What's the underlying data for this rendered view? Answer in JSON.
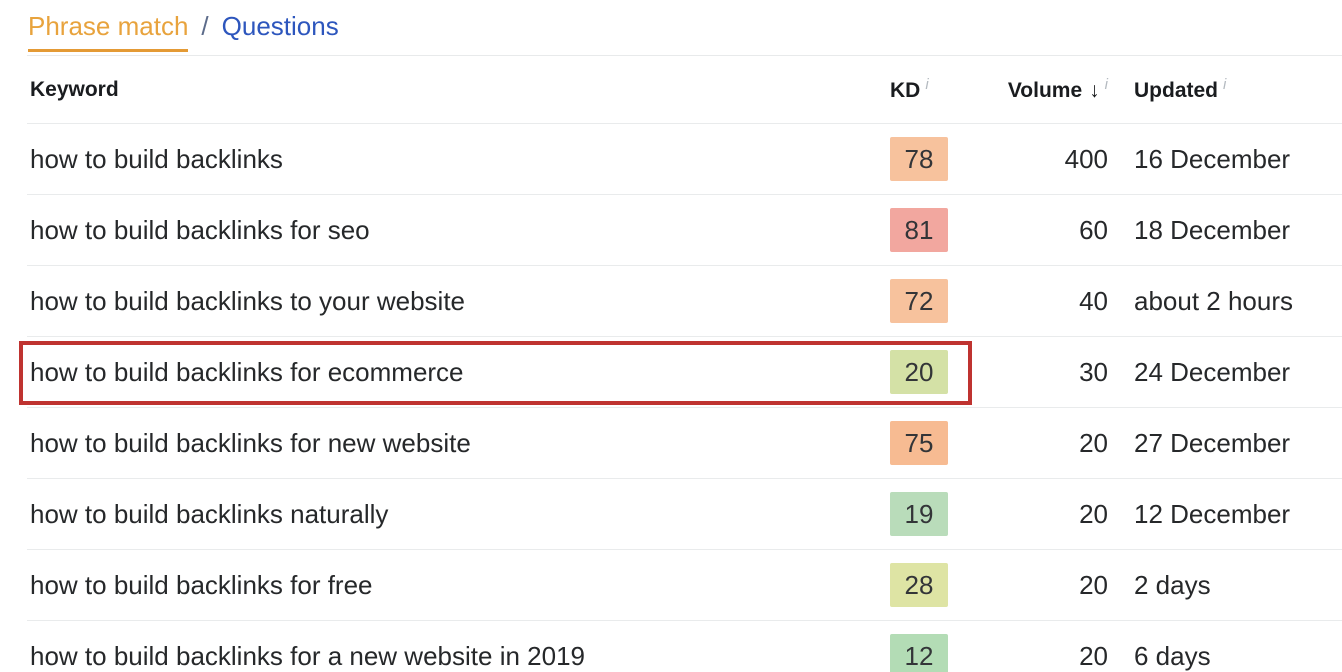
{
  "tabs": {
    "phrase_match": "Phrase match",
    "separator": "/",
    "questions": "Questions"
  },
  "table": {
    "headers": {
      "keyword": "Keyword",
      "kd": "KD",
      "volume": "Volume",
      "updated": "Updated",
      "sort_arrow": "↓",
      "info_icon": "i"
    },
    "rows": [
      {
        "keyword": "how to build backlinks",
        "kd": "78",
        "kd_color": "#f7c29d",
        "volume": "400",
        "updated": "16 December",
        "highlighted": false
      },
      {
        "keyword": "how to build backlinks for seo",
        "kd": "81",
        "kd_color": "#f2a79f",
        "volume": "60",
        "updated": "18 December",
        "highlighted": false
      },
      {
        "keyword": "how to build backlinks to your website",
        "kd": "72",
        "kd_color": "#f7c29d",
        "volume": "40",
        "updated": "about 2 hours",
        "highlighted": false
      },
      {
        "keyword": "how to build backlinks for ecommerce",
        "kd": "20",
        "kd_color": "#d4e1a6",
        "volume": "30",
        "updated": "24 December",
        "highlighted": true
      },
      {
        "keyword": "how to build backlinks for new website",
        "kd": "75",
        "kd_color": "#f7bb92",
        "volume": "20",
        "updated": "27 December",
        "highlighted": false
      },
      {
        "keyword": "how to build backlinks naturally",
        "kd": "19",
        "kd_color": "#b9dcba",
        "volume": "20",
        "updated": "12 December",
        "highlighted": false
      },
      {
        "keyword": "how to build backlinks for free",
        "kd": "28",
        "kd_color": "#dee4a4",
        "volume": "20",
        "updated": "2 days",
        "highlighted": false
      },
      {
        "keyword": "how to build backlinks for a new website in 2019",
        "kd": "12",
        "kd_color": "#b3dcb5",
        "volume": "20",
        "updated": "6 days",
        "highlighted": false
      }
    ]
  },
  "colors": {
    "accent_orange": "#e8a33d",
    "link_blue": "#2d56bd",
    "highlight_red": "#bf3330",
    "info_gray": "#b4bac0",
    "separator": "#e9ebec"
  }
}
